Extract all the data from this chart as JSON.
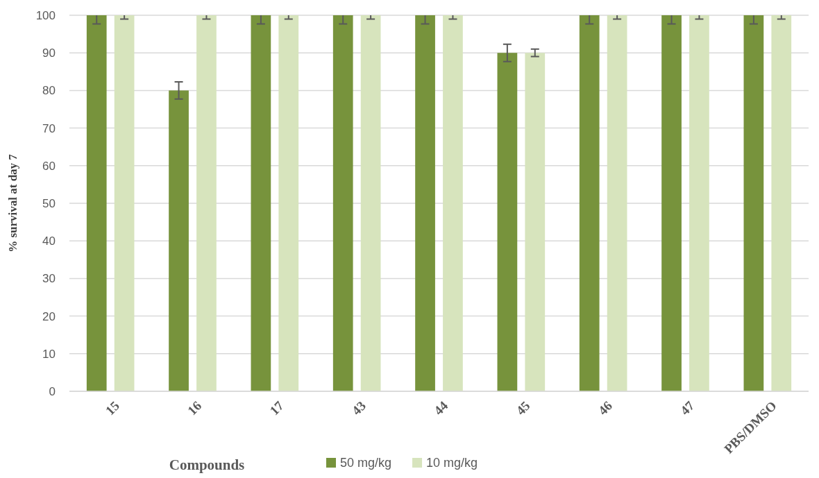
{
  "chart_data": {
    "type": "bar",
    "xlabel": "Compounds",
    "ylabel": "% survival at day 7",
    "categories": [
      "15",
      "16",
      "17",
      "43",
      "44",
      "45",
      "46",
      "47",
      "PBS/DMSO"
    ],
    "series": [
      {
        "name": "50 mg/kg",
        "color": "#77933c",
        "values": [
          100,
          80,
          100,
          100,
          100,
          90,
          100,
          100,
          100
        ],
        "errors": [
          [
            97.7,
            100
          ],
          [
            77.7,
            82.3
          ],
          [
            97.7,
            100
          ],
          [
            97.7,
            100
          ],
          [
            97.7,
            100
          ],
          [
            87.7,
            92.3
          ],
          [
            97.7,
            100
          ],
          [
            97.7,
            100
          ],
          [
            97.7,
            100
          ]
        ]
      },
      {
        "name": "10 mg/kg",
        "color": "#d7e4bd",
        "values": [
          100,
          100,
          100,
          100,
          100,
          90,
          100,
          100,
          100
        ],
        "errors": [
          [
            99,
            100
          ],
          [
            99,
            100
          ],
          [
            99,
            100
          ],
          [
            99,
            100
          ],
          [
            99,
            100
          ],
          [
            89,
            91
          ],
          [
            99,
            100
          ],
          [
            99,
            100
          ],
          [
            99,
            100
          ]
        ]
      }
    ],
    "ylim": [
      0,
      100
    ],
    "yticks": [
      0,
      10,
      20,
      30,
      40,
      50,
      60,
      70,
      80,
      90,
      100
    ],
    "grid": "y",
    "legend": "bottom"
  }
}
